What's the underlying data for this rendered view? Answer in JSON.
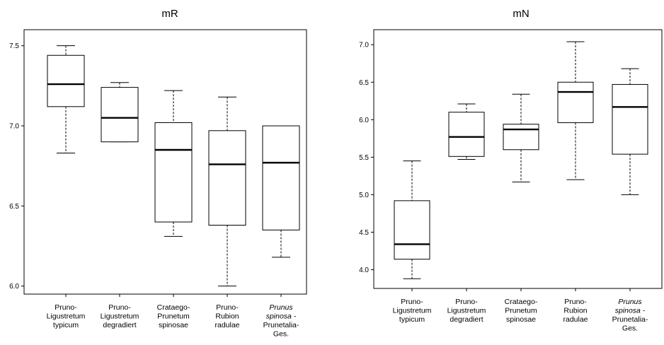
{
  "chart_data": [
    {
      "type": "box",
      "title": "mR",
      "ylim": [
        5.95,
        7.6
      ],
      "yticks": [
        6.0,
        6.5,
        7.0,
        7.5
      ],
      "ytick_labels": [
        "6.0",
        "6.5",
        "7.0",
        "7.5"
      ],
      "categories": [
        {
          "lines": [
            "Pruno-",
            "Ligustretum",
            "typicum"
          ],
          "italic_lines": 0
        },
        {
          "lines": [
            "Pruno-",
            "Ligustretum",
            "degradiert"
          ],
          "italic_lines": 0
        },
        {
          "lines": [
            "Crataego-",
            "Prunetum",
            "spinosae"
          ],
          "italic_lines": 0
        },
        {
          "lines": [
            "Pruno-",
            "Rubion",
            "radulae"
          ],
          "italic_lines": 0
        },
        {
          "lines": [
            "Prunus",
            "spinosa -",
            "Prunetalia-",
            "Ges."
          ],
          "italic_lines": 2
        }
      ],
      "boxes": [
        {
          "min": 6.83,
          "q1": 7.12,
          "median": 7.26,
          "q3": 7.44,
          "max": 7.5
        },
        {
          "min": 6.9,
          "q1": 6.9,
          "median": 7.05,
          "q3": 7.24,
          "max": 7.27
        },
        {
          "min": 6.31,
          "q1": 6.4,
          "median": 6.85,
          "q3": 7.02,
          "max": 7.22
        },
        {
          "min": 6.0,
          "q1": 6.38,
          "median": 6.76,
          "q3": 6.97,
          "max": 7.18
        },
        {
          "min": 6.18,
          "q1": 6.35,
          "median": 6.77,
          "q3": 7.0,
          "max": 7.0
        }
      ]
    },
    {
      "type": "box",
      "title": "mN",
      "ylim": [
        3.75,
        7.2
      ],
      "yticks": [
        4.0,
        4.5,
        5.0,
        5.5,
        6.0,
        6.5,
        7.0
      ],
      "ytick_labels": [
        "4.0",
        "4.5",
        "5.0",
        "5.5",
        "6.0",
        "6.5",
        "7.0"
      ],
      "categories": [
        {
          "lines": [
            "Pruno-",
            "Ligustretum",
            "typicum"
          ],
          "italic_lines": 0
        },
        {
          "lines": [
            "Pruno-",
            "Ligustretum",
            "degradiert"
          ],
          "italic_lines": 0
        },
        {
          "lines": [
            "Crataego-",
            "Prunetum",
            "spinosae"
          ],
          "italic_lines": 0
        },
        {
          "lines": [
            "Pruno-",
            "Rubion",
            "radulae"
          ],
          "italic_lines": 0
        },
        {
          "lines": [
            "Prunus",
            "spinosa -",
            "Prunetalia-",
            "Ges."
          ],
          "italic_lines": 2
        }
      ],
      "boxes": [
        {
          "min": 3.88,
          "q1": 4.14,
          "median": 4.34,
          "q3": 4.92,
          "max": 5.45
        },
        {
          "min": 5.47,
          "q1": 5.51,
          "median": 5.77,
          "q3": 6.1,
          "max": 6.21
        },
        {
          "min": 5.17,
          "q1": 5.6,
          "median": 5.87,
          "q3": 5.94,
          "max": 6.34
        },
        {
          "min": 5.2,
          "q1": 5.96,
          "median": 6.37,
          "q3": 6.5,
          "max": 7.04
        },
        {
          "min": 5.0,
          "q1": 5.54,
          "median": 6.17,
          "q3": 6.47,
          "max": 6.68
        }
      ]
    }
  ]
}
